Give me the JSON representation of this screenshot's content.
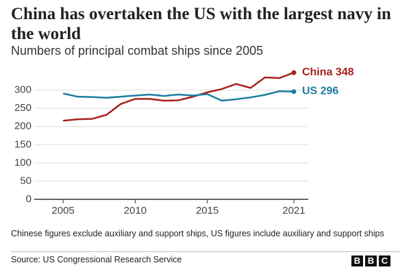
{
  "chart_data": {
    "type": "line",
    "title": "China has overtaken the US with the largest navy in the world",
    "subtitle": "Numbers of principal combat ships since 2005",
    "x": [
      2005,
      2006,
      2007,
      2008,
      2009,
      2010,
      2011,
      2012,
      2013,
      2014,
      2015,
      2016,
      2017,
      2018,
      2019,
      2020,
      2021
    ],
    "series": [
      {
        "name": "China",
        "color": "#a8201a",
        "values": [
          216,
          220,
          221,
          232,
          262,
          276,
          276,
          271,
          272,
          282,
          294,
          303,
          317,
          306,
          335,
          333,
          348
        ]
      },
      {
        "name": "US",
        "color": "#1b7d9e",
        "values": [
          291,
          282,
          281,
          279,
          282,
          285,
          288,
          284,
          288,
          285,
          289,
          271,
          275,
          280,
          287,
          297,
          296
        ]
      }
    ],
    "xlim": [
      2003,
      2022
    ],
    "xticks": [
      2005,
      2010,
      2015,
      2021
    ],
    "ylim": [
      0,
      350
    ],
    "yticks": [
      0,
      50,
      100,
      150,
      200,
      250,
      300
    ],
    "grid": true,
    "note": "Chinese figures exclude auxiliary and support ships, US figures include auxiliary and support ships",
    "source": "Source: US Congressional Research Service",
    "logo": [
      "B",
      "B",
      "C"
    ]
  }
}
